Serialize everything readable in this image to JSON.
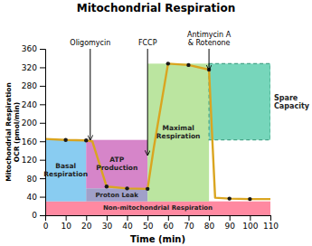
{
  "chart_data": {
    "type": "line",
    "title": "Mitochondrial Respiration",
    "xlabel": "Time (min)",
    "ylabel": "Mitochondrial Respiration\nOCR (pmol/min)",
    "xlim": [
      0,
      110
    ],
    "ylim": [
      0,
      360
    ],
    "xticks": [
      0,
      10,
      20,
      30,
      40,
      50,
      60,
      70,
      80,
      90,
      100,
      110
    ],
    "yticks": [
      0,
      40,
      80,
      120,
      160,
      200,
      240,
      280,
      320,
      360
    ],
    "grid": false,
    "series": [
      {
        "type": "line",
        "color": "#DAA520",
        "x": [
          0,
          10,
          20,
          23,
          30,
          40,
          50,
          53,
          60,
          70,
          80,
          83,
          90,
          100,
          110
        ],
        "values": [
          165,
          163,
          162,
          160,
          62,
          58,
          57,
          145,
          328,
          325,
          315,
          38,
          36,
          35,
          35
        ]
      },
      {
        "type": "scatter",
        "color": "#1a1a1a",
        "x": [
          10,
          20,
          30,
          40,
          50,
          60,
          70,
          80,
          90,
          100
        ],
        "values": [
          163,
          162,
          62,
          58,
          57,
          328,
          325,
          315,
          36,
          35
        ]
      }
    ],
    "regions": [
      {
        "label": "Non-mitochondrial Respiration",
        "x": [
          0,
          110
        ],
        "y": [
          0,
          30
        ],
        "color": "#FF6B8A"
      },
      {
        "label": "Basal\nRespiration",
        "x": [
          0,
          20
        ],
        "y": [
          30,
          163
        ],
        "color": "#6BBFEE"
      },
      {
        "label": "ATP\nProduction",
        "x": [
          20,
          50
        ],
        "y": [
          58,
          163
        ],
        "color": "#CC66BB"
      },
      {
        "label": "Proton Leak",
        "x": [
          20,
          50
        ],
        "y": [
          30,
          58
        ],
        "color": "#8888BB"
      },
      {
        "label": "Maximal\nRespiration",
        "x": [
          50,
          80
        ],
        "y": [
          30,
          328
        ],
        "color": "#AADE88"
      },
      {
        "label": "Spare\nCapacity",
        "x": [
          80,
          110
        ],
        "y": [
          163,
          328
        ],
        "color": "#55CCAA",
        "line_style": "dashed"
      }
    ],
    "annotations": [
      {
        "text": "Oligomycin",
        "x": 22,
        "y": 163
      },
      {
        "text": "FCCP",
        "x": 50,
        "y": 130
      },
      {
        "text": "Antimycin A\n& Rotenone",
        "x": 80,
        "y": 315
      }
    ]
  }
}
